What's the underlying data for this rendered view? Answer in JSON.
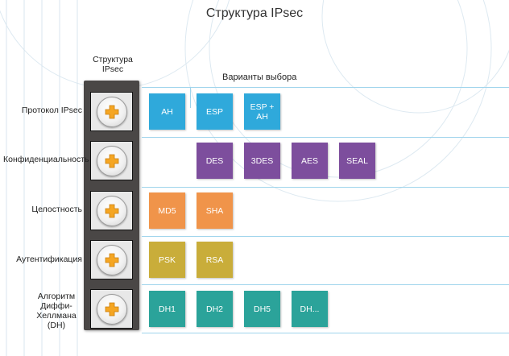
{
  "title": "Структура IPsec",
  "column_header": "Структура IPsec",
  "options_header": "Варианты выбора",
  "rows": [
    {
      "label": "Протокол IPsec",
      "options": [
        "AH",
        "ESP",
        "ESP + AH"
      ]
    },
    {
      "label": "Конфиденциальность",
      "options": [
        "DES",
        "3DES",
        "AES",
        "SEAL"
      ]
    },
    {
      "label": "Целостность",
      "options": [
        "MD5",
        "SHA"
      ]
    },
    {
      "label": "Аутентификация",
      "options": [
        "PSK",
        "RSA"
      ]
    },
    {
      "label": "Алгоритм Диффи-Хеллмана (DH)",
      "options": [
        "DH1",
        "DH2",
        "DH5",
        "DH..."
      ]
    }
  ],
  "colors": {
    "protocol": "#2fa9db",
    "confidentiality": "#7d4e9d",
    "integrity": "#f0944a",
    "authentication": "#c9ad3a",
    "dh": "#2ba39a",
    "plus": "#f5a623",
    "lines": "#9fd4ec"
  },
  "icons": [
    "plus-icon"
  ]
}
